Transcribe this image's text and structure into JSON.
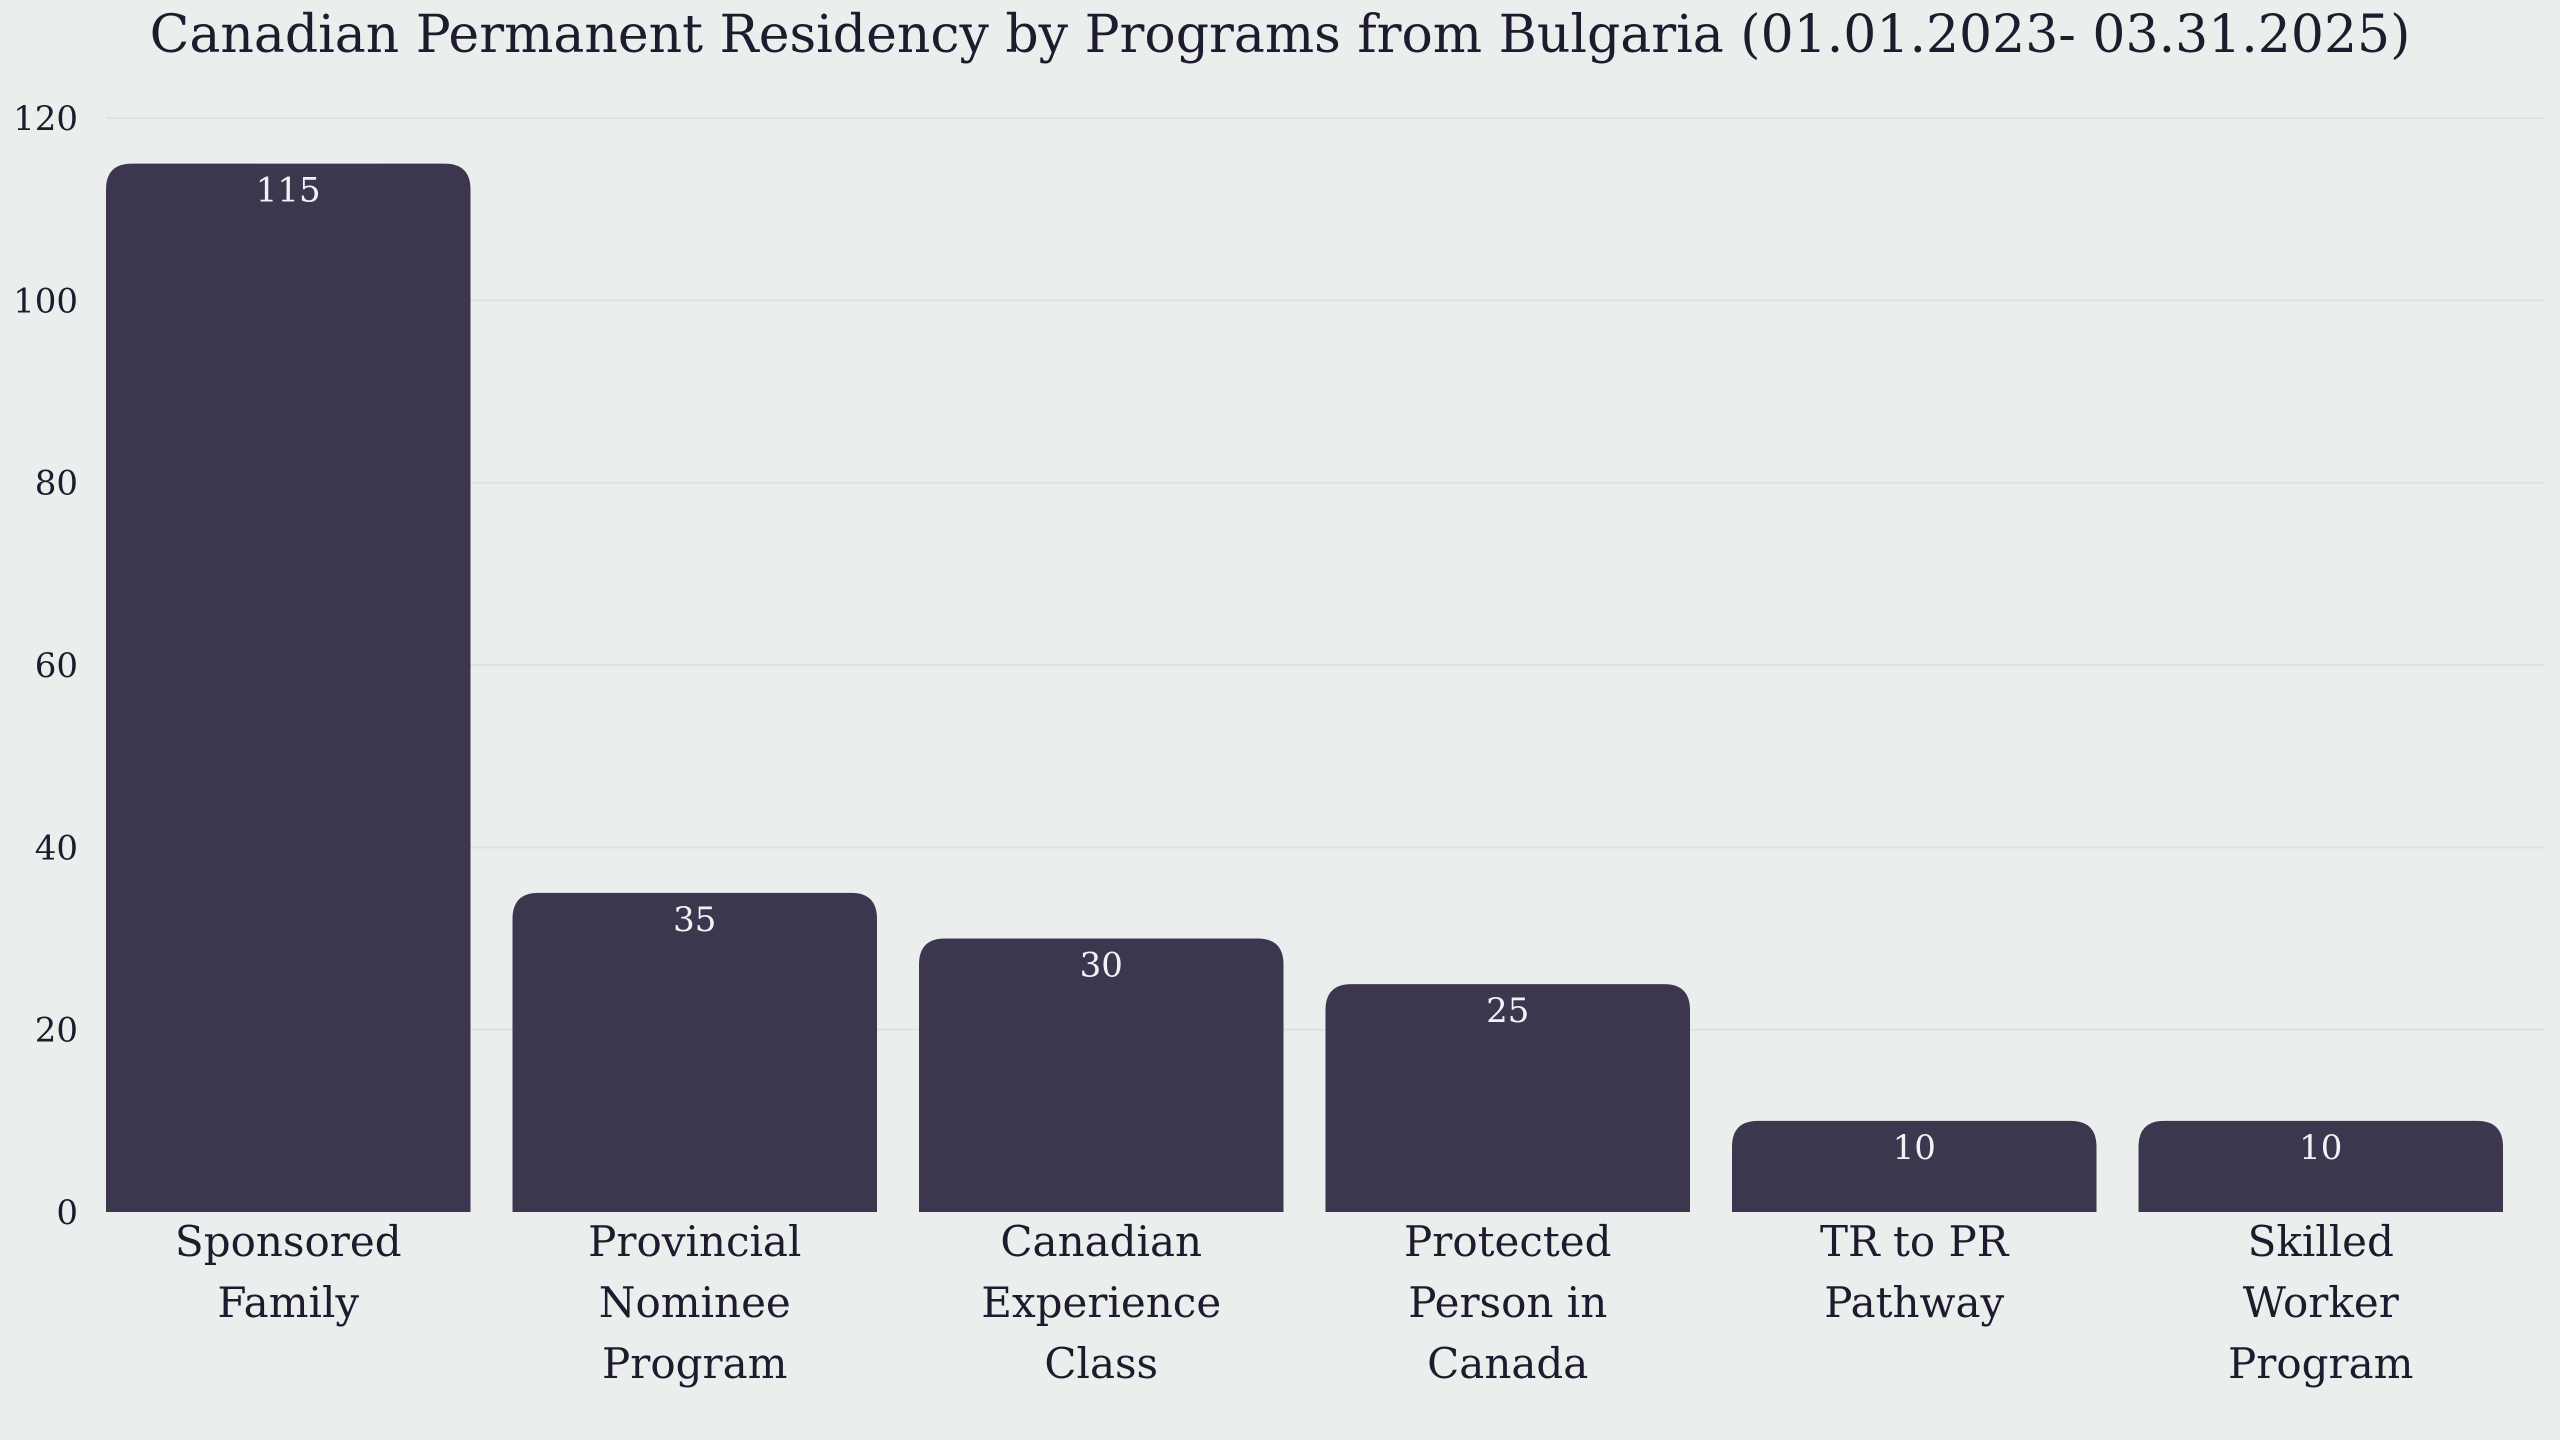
{
  "chart_data": {
    "type": "bar",
    "title": "Canadian Permanent Residency by Programs from Bulgaria (01.01.2023- 03.31.2025)",
    "xlabel": "",
    "ylabel": "",
    "ylim": [
      0,
      120
    ],
    "yticks": [
      0,
      20,
      40,
      60,
      80,
      100,
      120
    ],
    "grid": true,
    "categories": [
      [
        "Sponsored",
        "Family"
      ],
      [
        "Provincial",
        "Nominee",
        "Program"
      ],
      [
        "Canadian",
        "Experience",
        "Class"
      ],
      [
        "Protected",
        "Person in",
        "Canada"
      ],
      [
        "TR to PR",
        "Pathway"
      ],
      [
        "Skilled",
        "Worker",
        "Program"
      ]
    ],
    "values": [
      115,
      35,
      30,
      25,
      10,
      10
    ],
    "colors": {
      "bar": "#3c374f",
      "background": "#eaeeed"
    }
  }
}
